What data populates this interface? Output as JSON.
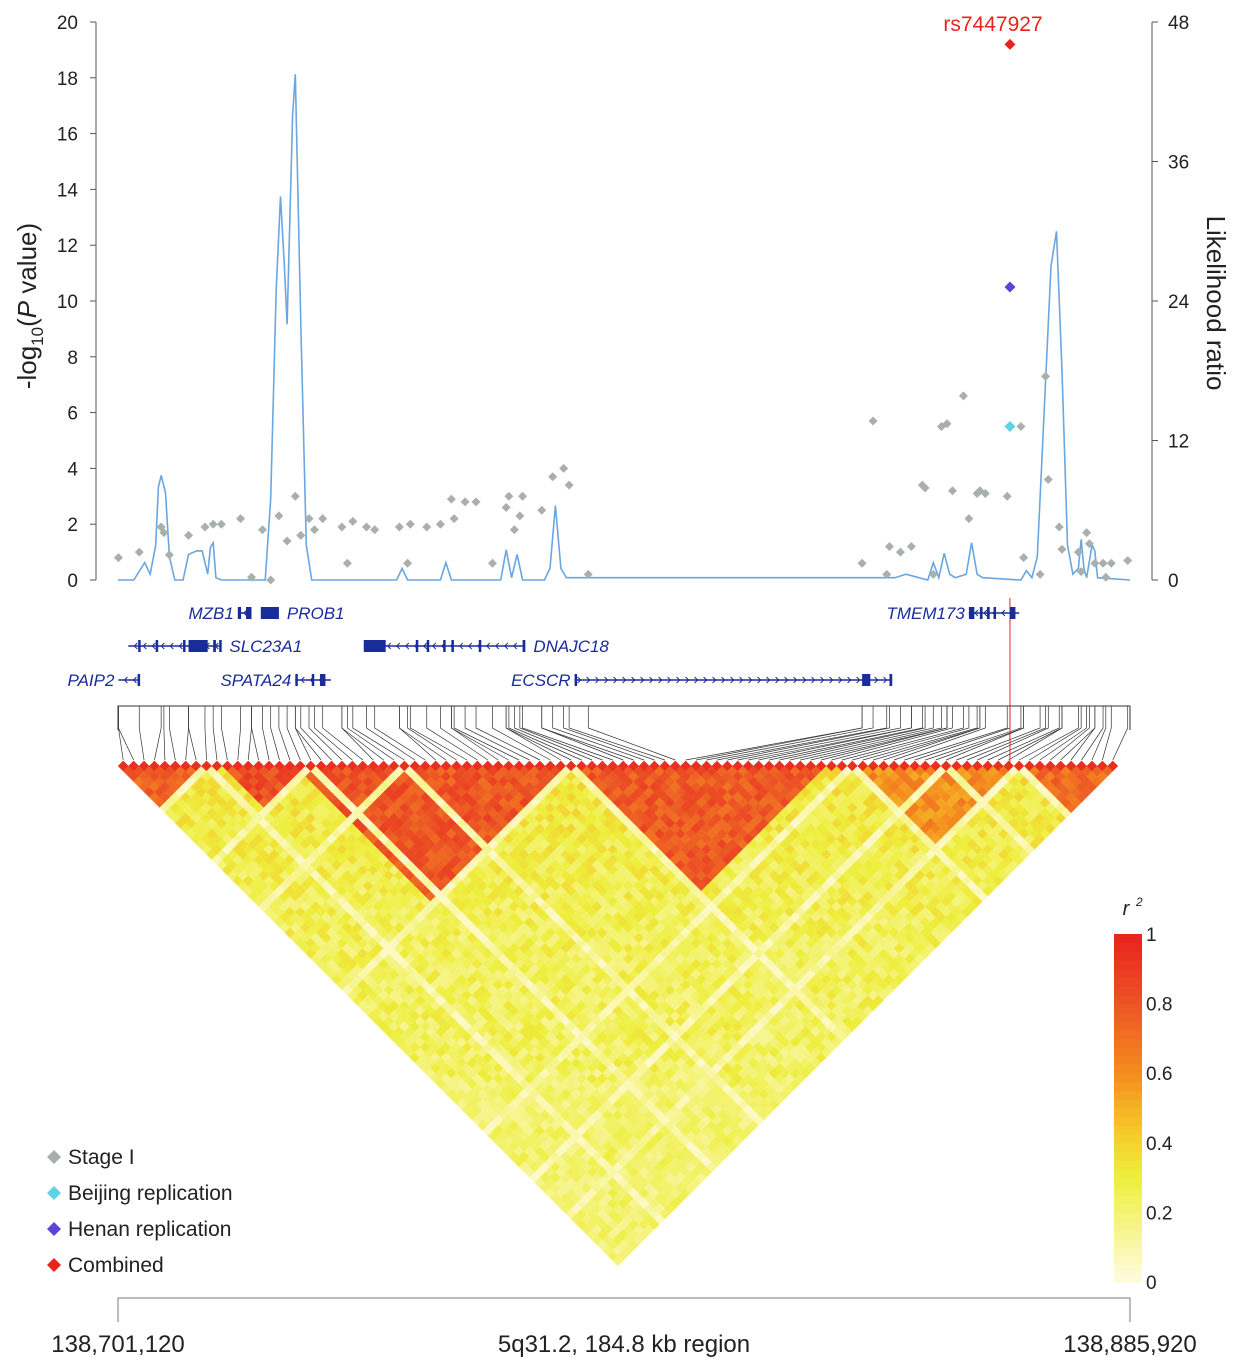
{
  "chart_data": {
    "type": "scatter",
    "region_label": "5q31.2, 184.8 kb region",
    "x_start_label": "138,701,120",
    "x_end_label": "138,885,920",
    "xlim": [
      138701120,
      138885920
    ],
    "left_axis": {
      "title_prefix": "-log",
      "title_sub": "10",
      "title_open": "(",
      "title_italic": "P",
      "title_rest": " value)",
      "ticks": [
        "0",
        "2",
        "4",
        "6",
        "8",
        "10",
        "12",
        "14",
        "16",
        "18",
        "20"
      ],
      "ylim": [
        0,
        20
      ]
    },
    "right_axis": {
      "title": "Likelihood ratio",
      "ticks": [
        "0",
        "12",
        "24",
        "36",
        "48"
      ],
      "ylim": [
        0,
        48
      ]
    },
    "lead_snp": {
      "label": "rs7447927",
      "position": 138864000,
      "combined": 19.2,
      "henan": 10.5,
      "beijing": 5.5
    },
    "stage1": [
      [
        138701200,
        0.8
      ],
      [
        138705000,
        1.0
      ],
      [
        138709000,
        1.9
      ],
      [
        138709500,
        1.7
      ],
      [
        138710500,
        0.9
      ],
      [
        138714000,
        1.6
      ],
      [
        138717000,
        1.9
      ],
      [
        138718500,
        2.0
      ],
      [
        138720000,
        2.0
      ],
      [
        138723500,
        2.2
      ],
      [
        138725500,
        0.1
      ],
      [
        138727500,
        1.8
      ],
      [
        138729000,
        0.0
      ],
      [
        138730500,
        2.3
      ],
      [
        138732000,
        1.4
      ],
      [
        138733500,
        3.0
      ],
      [
        138734500,
        1.6
      ],
      [
        138736000,
        2.2
      ],
      [
        138737000,
        1.8
      ],
      [
        138738500,
        2.2
      ],
      [
        138742000,
        1.9
      ],
      [
        138743000,
        0.6
      ],
      [
        138744000,
        2.1
      ],
      [
        138746500,
        1.9
      ],
      [
        138748000,
        1.8
      ],
      [
        138752500,
        1.9
      ],
      [
        138754000,
        0.6
      ],
      [
        138754500,
        2.0
      ],
      [
        138757500,
        1.9
      ],
      [
        138760000,
        2.0
      ],
      [
        138762000,
        2.9
      ],
      [
        138762500,
        2.2
      ],
      [
        138764500,
        2.8
      ],
      [
        138766500,
        2.8
      ],
      [
        138769500,
        0.6
      ],
      [
        138772000,
        2.6
      ],
      [
        138772500,
        3.0
      ],
      [
        138773500,
        1.8
      ],
      [
        138774500,
        2.3
      ],
      [
        138775000,
        3.0
      ],
      [
        138778500,
        2.5
      ],
      [
        138780500,
        3.7
      ],
      [
        138782500,
        4.0
      ],
      [
        138783500,
        3.4
      ],
      [
        138787000,
        0.2
      ],
      [
        138837000,
        0.6
      ],
      [
        138839000,
        5.7
      ],
      [
        138841500,
        0.2
      ],
      [
        138842000,
        1.2
      ],
      [
        138844000,
        1.0
      ],
      [
        138846000,
        1.2
      ],
      [
        138848000,
        3.4
      ],
      [
        138848500,
        3.3
      ],
      [
        138850000,
        0.2
      ],
      [
        138851500,
        5.5
      ],
      [
        138852500,
        5.6
      ],
      [
        138853500,
        3.2
      ],
      [
        138855500,
        6.6
      ],
      [
        138856500,
        2.2
      ],
      [
        138858000,
        3.1
      ],
      [
        138858500,
        3.2
      ],
      [
        138859500,
        3.1
      ],
      [
        138863500,
        3.0
      ],
      [
        138866000,
        5.5
      ],
      [
        138866500,
        0.8
      ],
      [
        138869500,
        0.2
      ],
      [
        138870500,
        7.3
      ],
      [
        138871000,
        3.6
      ],
      [
        138873000,
        1.9
      ],
      [
        138873500,
        1.1
      ],
      [
        138876500,
        1.0
      ],
      [
        138877000,
        0.3
      ],
      [
        138878000,
        1.7
      ],
      [
        138878500,
        1.3
      ],
      [
        138879500,
        0.6
      ],
      [
        138881000,
        0.6
      ],
      [
        138881500,
        0.1
      ],
      [
        138882500,
        0.6
      ],
      [
        138885500,
        0.7
      ]
    ],
    "lr_curve": [
      [
        138701120,
        0.0
      ],
      [
        138704000,
        0.0
      ],
      [
        138706000,
        1.5
      ],
      [
        138707000,
        0.5
      ],
      [
        138708000,
        3.0
      ],
      [
        138708500,
        8.0
      ],
      [
        138709000,
        9.0
      ],
      [
        138709800,
        7.5
      ],
      [
        138710500,
        2.0
      ],
      [
        138711500,
        0.0
      ],
      [
        138713000,
        0.0
      ],
      [
        138714000,
        2.2
      ],
      [
        138715500,
        2.5
      ],
      [
        138716500,
        2.5
      ],
      [
        138717500,
        0.5
      ],
      [
        138718000,
        2.8
      ],
      [
        138718500,
        3.2
      ],
      [
        138719000,
        0.2
      ],
      [
        138720000,
        0.0
      ],
      [
        138728000,
        0.0
      ],
      [
        138729000,
        7.0
      ],
      [
        138730000,
        25.0
      ],
      [
        138730800,
        33.0
      ],
      [
        138731500,
        27.0
      ],
      [
        138732000,
        22.0
      ],
      [
        138733000,
        40.0
      ],
      [
        138733500,
        43.5
      ],
      [
        138734500,
        22.0
      ],
      [
        138735500,
        3.0
      ],
      [
        138736500,
        0.0
      ],
      [
        138752000,
        0.0
      ],
      [
        138753000,
        1.0
      ],
      [
        138754000,
        0.0
      ],
      [
        138760000,
        0.0
      ],
      [
        138761000,
        1.5
      ],
      [
        138762000,
        0.0
      ],
      [
        138771000,
        0.0
      ],
      [
        138772000,
        2.6
      ],
      [
        138773000,
        0.2
      ],
      [
        138774000,
        2.2
      ],
      [
        138775000,
        0.0
      ],
      [
        138779000,
        0.0
      ],
      [
        138780000,
        1.0
      ],
      [
        138781000,
        6.4
      ],
      [
        138782000,
        1.0
      ],
      [
        138783000,
        0.2
      ],
      [
        138836000,
        0.2
      ],
      [
        138843000,
        0.2
      ],
      [
        138845000,
        0.5
      ],
      [
        138849000,
        0.0
      ],
      [
        138850000,
        1.5
      ],
      [
        138851000,
        0.2
      ],
      [
        138852000,
        2.3
      ],
      [
        138853000,
        0.5
      ],
      [
        138854000,
        0.2
      ],
      [
        138856000,
        0.5
      ],
      [
        138857000,
        3.2
      ],
      [
        138858000,
        0.5
      ],
      [
        138859000,
        0.2
      ],
      [
        138866000,
        0.0
      ],
      [
        138867000,
        0.8
      ],
      [
        138868000,
        0.2
      ],
      [
        138869000,
        2.0
      ],
      [
        138870000,
        12.0
      ],
      [
        138871500,
        27.0
      ],
      [
        138872500,
        30.0
      ],
      [
        138873500,
        18.0
      ],
      [
        138874500,
        3.0
      ],
      [
        138875500,
        0.5
      ],
      [
        138876500,
        1.0
      ],
      [
        138877000,
        3.5
      ],
      [
        138877500,
        1.0
      ],
      [
        138878000,
        0.2
      ],
      [
        138879000,
        3.0
      ],
      [
        138879500,
        2.5
      ],
      [
        138880000,
        0.2
      ],
      [
        138885920,
        0.0
      ]
    ],
    "genes": [
      {
        "name": "MZB1",
        "start": 138723000,
        "end": 138725500,
        "row": 0,
        "strand": "-",
        "exons": [
          [
            138723000,
            138723600
          ],
          [
            138724500,
            138725500
          ]
        ]
      },
      {
        "name": "PROB1",
        "start": 138727200,
        "end": 138730500,
        "row": 0,
        "strand": "-",
        "exons": [
          [
            138727200,
            138730500
          ]
        ]
      },
      {
        "name": "TMEM173",
        "start": 138856500,
        "end": 138865700,
        "row": 0,
        "strand": "-",
        "exons": [
          [
            138856500,
            138857500
          ],
          [
            138858500,
            138859000
          ],
          [
            138859800,
            138860300
          ],
          [
            138861000,
            138861300
          ],
          [
            138864000,
            138865000
          ]
        ]
      },
      {
        "name": "SLC23A1",
        "start": 138703000,
        "end": 138720000,
        "row": 1,
        "strand": "-",
        "exons": [
          [
            138704800,
            138705100
          ],
          [
            138708000,
            138708200
          ],
          [
            138713000,
            138713300
          ],
          [
            138714000,
            138717500
          ],
          [
            138718500,
            138719000
          ],
          [
            138719600,
            138720000
          ]
        ]
      },
      {
        "name": "DNAJC18",
        "start": 138746000,
        "end": 138775500,
        "row": 1,
        "strand": "-",
        "exons": [
          [
            138746000,
            138750000
          ],
          [
            138755500,
            138755800
          ],
          [
            138757500,
            138757800
          ],
          [
            138760500,
            138760800
          ],
          [
            138762000,
            138762400
          ],
          [
            138767000,
            138767300
          ],
          [
            138775000,
            138775500
          ]
        ]
      },
      {
        "name": "PAIP2",
        "start": 138701200,
        "end": 138705000,
        "row": 2,
        "strand": "-",
        "exons": [
          [
            138704700,
            138705000
          ]
        ]
      },
      {
        "name": "SPATA24",
        "start": 138733500,
        "end": 138740000,
        "row": 2,
        "strand": "-",
        "exons": [
          [
            138733500,
            138733800
          ],
          [
            138736500,
            138736800
          ],
          [
            138738000,
            138739000
          ]
        ]
      },
      {
        "name": "ECSCR",
        "start": 138784500,
        "end": 138842500,
        "row": 2,
        "strand": "+",
        "exons": [
          [
            138784500,
            138784900
          ],
          [
            138837000,
            138838500
          ],
          [
            138842000,
            138842500
          ]
        ]
      }
    ],
    "legend": [
      {
        "label": "Stage I",
        "color": "#a9b0ac"
      },
      {
        "label": "Beijing replication",
        "color": "#5fd2e6"
      },
      {
        "label": "Henan replication",
        "color": "#5a45d6"
      },
      {
        "label": "Combined",
        "color": "#e8231e"
      }
    ],
    "ld_colorbar": {
      "title": "r",
      "title_sup": "2",
      "ticks": [
        "0",
        "0.2",
        "0.4",
        "0.6",
        "0.8",
        "1"
      ],
      "range": [
        0,
        1
      ]
    },
    "ld_blocks": [
      {
        "from": 0,
        "to": 8,
        "r2": 0.75
      },
      {
        "from": 10,
        "to": 17,
        "r2": 0.82
      },
      {
        "from": 17,
        "to": 42,
        "r2": 0.8
      },
      {
        "from": 43,
        "to": 67,
        "r2": 0.78
      },
      {
        "from": 70,
        "to": 86,
        "r2": 0.6
      },
      {
        "from": 86,
        "to": 95,
        "r2": 0.72
      }
    ],
    "ld_breaks": [
      8,
      18,
      27,
      43,
      70,
      79,
      86
    ],
    "ld_snp_count": 96,
    "grid": false,
    "legend_placement": "bottom-left",
    "colors": {
      "curve": "#6aa6e0",
      "gene": "#1a2c9a",
      "lead_line": "#e8231e",
      "lead_label": "#e8231e",
      "axis": "#555555"
    }
  }
}
